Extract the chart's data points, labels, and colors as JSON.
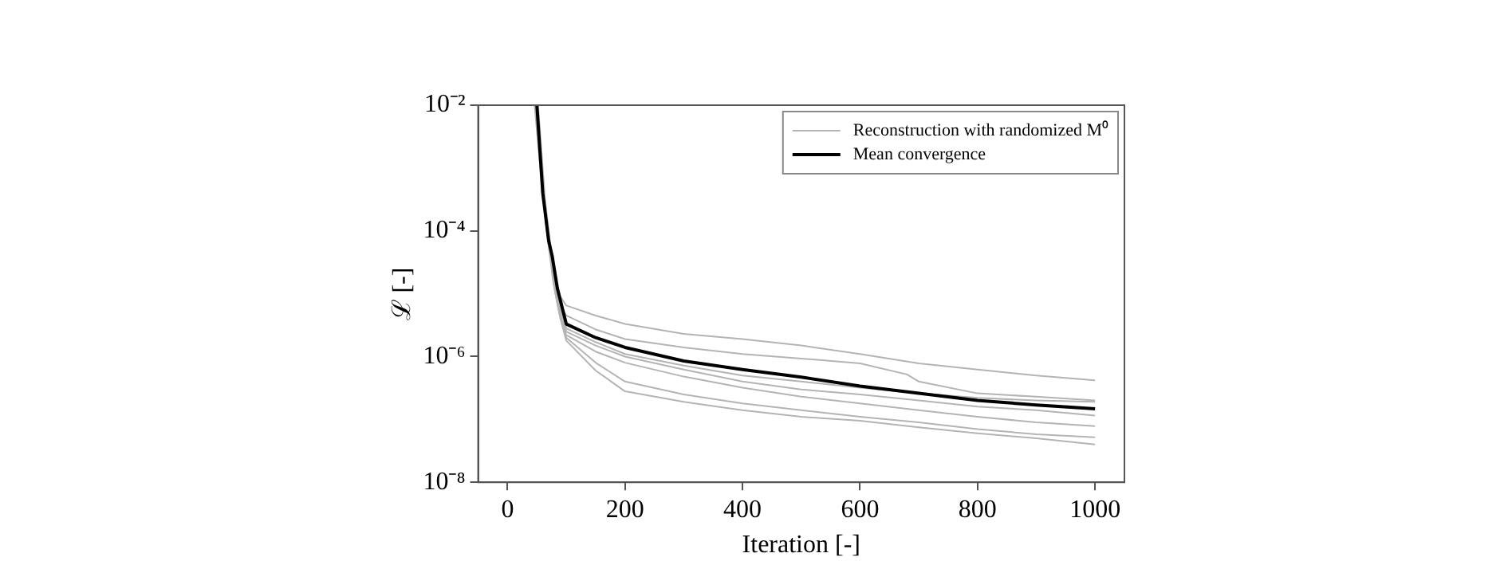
{
  "chart_data": {
    "type": "line",
    "xlabel": "Iteration [-]",
    "ylabel": "ℒ [-]",
    "log": "y",
    "grid": false,
    "legend": "top right",
    "marker": "none",
    "line_style": "solid",
    "xlim": [
      -50,
      1050
    ],
    "xticks": [
      0,
      200,
      400,
      600,
      800,
      1000
    ],
    "ylim": [
      1e-08,
      0.01
    ],
    "yticks": [
      {
        "value": 1e-08,
        "label": "10⁻⁸"
      },
      {
        "value": 1e-06,
        "label": "10⁻⁶"
      },
      {
        "value": 0.0001,
        "label": "10⁻⁴"
      },
      {
        "value": 0.01,
        "label": "10⁻²"
      }
    ],
    "series": [
      {
        "name": "Reconstruction with randomized M⁰",
        "color": "#b4b4b4",
        "x": [
          48,
          60,
          70,
          80,
          90,
          100,
          150,
          200,
          300,
          400,
          500,
          600,
          700,
          800,
          900,
          1000
        ],
        "values": [
          0.01,
          0.0005,
          8e-05,
          2e-05,
          9e-06,
          6.5e-06,
          4.5e-06,
          3.3e-06,
          2.3e-06,
          1.9e-06,
          1.5e-06,
          1.1e-06,
          7.8e-07,
          6.2e-07,
          5e-07,
          4.2e-07
        ]
      },
      {
        "color": "#b4b4b4",
        "x": [
          50,
          62,
          72,
          82,
          92,
          100,
          150,
          200,
          300,
          400,
          500,
          600,
          680,
          700,
          800,
          900,
          1000
        ],
        "values": [
          0.01,
          0.0004,
          6e-05,
          1.5e-05,
          6e-06,
          4.5e-06,
          2.7e-06,
          1.9e-06,
          1.4e-06,
          1.1e-06,
          9.3e-07,
          7.8e-07,
          5.2e-07,
          4e-07,
          2.6e-07,
          2.3e-07,
          2e-07
        ]
      },
      {
        "color": "#b4b4b4",
        "x": [
          52,
          64,
          74,
          84,
          94,
          100,
          150,
          200,
          300,
          400,
          500,
          600,
          700,
          800,
          900,
          1000
        ],
        "values": [
          0.01,
          0.0003,
          5e-05,
          1.2e-05,
          5e-06,
          2.8e-06,
          1.7e-06,
          1.1e-06,
          7.2e-07,
          5e-07,
          4e-07,
          3.2e-07,
          2.6e-07,
          2.2e-07,
          2e-07,
          1.9e-07
        ]
      },
      {
        "color": "#b4b4b4",
        "x": [
          50,
          62,
          72,
          82,
          92,
          100,
          150,
          200,
          300,
          400,
          500,
          600,
          700,
          800,
          900,
          1000
        ],
        "values": [
          0.01,
          0.0004,
          6e-05,
          1.3e-05,
          5e-06,
          2.5e-06,
          1.5e-06,
          1e-06,
          6.2e-07,
          4e-07,
          3e-07,
          2.5e-07,
          2e-07,
          1.6e-07,
          1.4e-07,
          1.15e-07
        ]
      },
      {
        "color": "#b4b4b4",
        "x": [
          46,
          58,
          68,
          78,
          88,
          100,
          150,
          200,
          300,
          400,
          500,
          600,
          700,
          800,
          900,
          1000
        ],
        "values": [
          0.01,
          0.0006,
          8e-05,
          1.5e-05,
          5e-06,
          2.2e-06,
          1.2e-06,
          8e-07,
          4.8e-07,
          3.2e-07,
          2.3e-07,
          1.8e-07,
          1.4e-07,
          1.1e-07,
          9e-08,
          7.8e-08
        ]
      },
      {
        "color": "#b4b4b4",
        "x": [
          50,
          62,
          72,
          82,
          92,
          100,
          150,
          200,
          300,
          400,
          500,
          600,
          700,
          800,
          900,
          1000
        ],
        "values": [
          0.01,
          0.0004,
          6e-05,
          1.2e-05,
          4e-06,
          2e-06,
          8e-07,
          4e-07,
          2.5e-07,
          1.8e-07,
          1.4e-07,
          1.1e-07,
          9e-08,
          7e-08,
          5.8e-08,
          5.2e-08
        ]
      },
      {
        "color": "#b4b4b4",
        "x": [
          48,
          60,
          70,
          80,
          90,
          100,
          150,
          200,
          300,
          400,
          500,
          600,
          700,
          800,
          900,
          1000
        ],
        "values": [
          0.01,
          0.0005,
          7e-05,
          1.2e-05,
          4e-06,
          1.8e-06,
          6e-07,
          2.8e-07,
          1.9e-07,
          1.4e-07,
          1.1e-07,
          9.5e-08,
          7.5e-08,
          6e-08,
          5e-08,
          4e-08
        ]
      },
      {
        "name": "Mean convergence",
        "color": "#000000",
        "x": [
          50,
          60,
          70,
          76,
          85,
          100,
          150,
          200,
          300,
          400,
          500,
          600,
          700,
          800,
          900,
          1000
        ],
        "values": [
          0.01,
          0.0004,
          7e-05,
          4e-05,
          1.2e-05,
          3.3e-06,
          2e-06,
          1.4e-06,
          8.5e-07,
          6.2e-07,
          4.7e-07,
          3.4e-07,
          2.6e-07,
          2e-07,
          1.7e-07,
          1.48e-07
        ]
      }
    ]
  }
}
